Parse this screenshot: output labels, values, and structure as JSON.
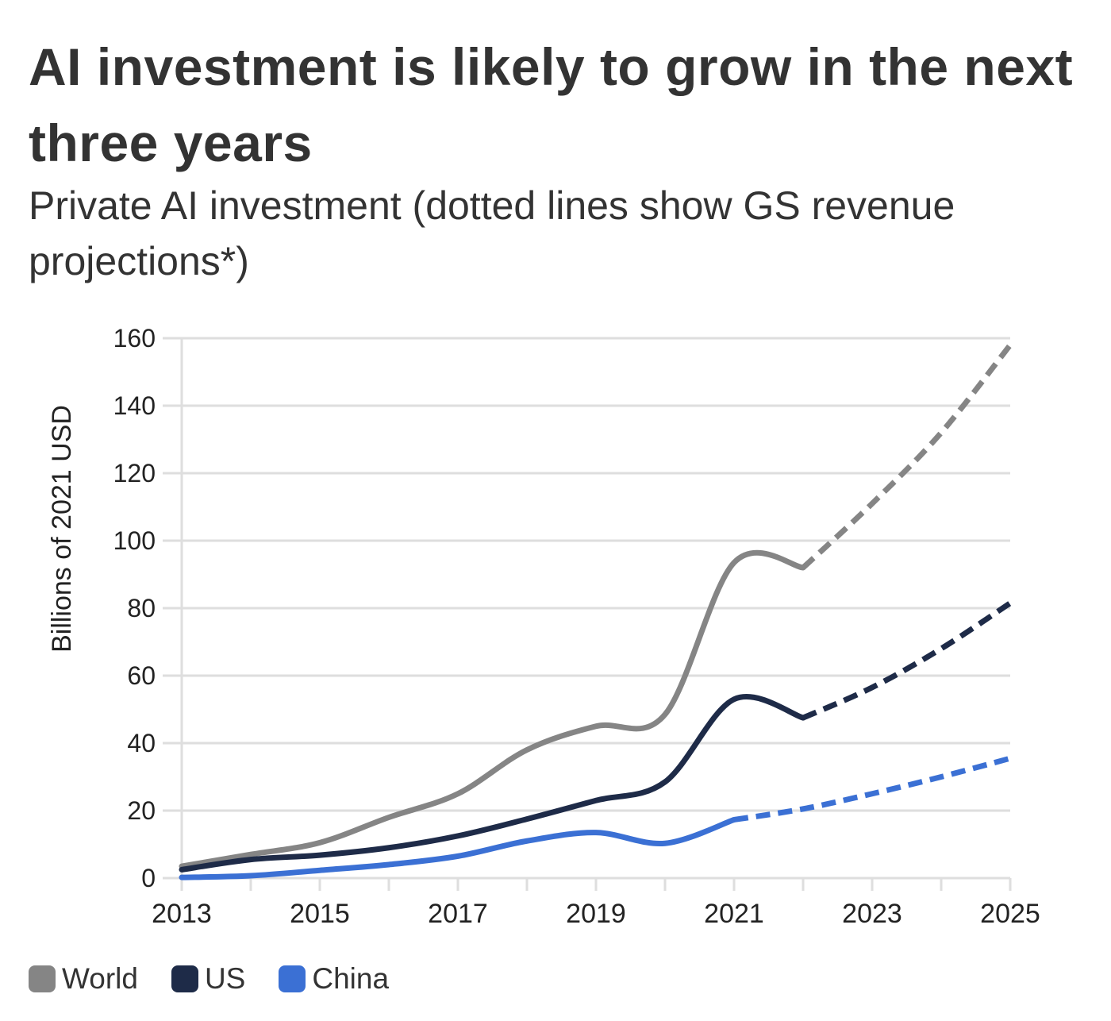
{
  "title": "AI investment is likely to grow in the next three years",
  "subtitle": "Private AI investment (dotted lines show GS revenue projections*)",
  "chart_data": {
    "type": "line",
    "title": "AI investment is likely to grow in the next three years",
    "subtitle": "Private AI investment (dotted lines show GS revenue projections*)",
    "ylabel": "Billions of 2021 USD",
    "xlabel": "",
    "x": [
      2013,
      2014,
      2015,
      2016,
      2017,
      2018,
      2019,
      2020,
      2021,
      2022,
      2023,
      2024,
      2025
    ],
    "xlim": [
      2013,
      2025
    ],
    "ylim": [
      0,
      160
    ],
    "xticks": [
      "2013",
      "2015",
      "2017",
      "2019",
      "2021",
      "2023",
      "2025"
    ],
    "yticks": [
      "0",
      "20",
      "40",
      "60",
      "80",
      "100",
      "120",
      "140",
      "160"
    ],
    "grid": true,
    "legend_position": "bottom-left",
    "series": [
      {
        "name": "World",
        "color": "#858585",
        "projection_from": 2022,
        "values": [
          3.5,
          7,
          10.5,
          18,
          25,
          38,
          45,
          48.5,
          93.5,
          92,
          111,
          132,
          158
        ]
      },
      {
        "name": "US",
        "color": "#1e2b48",
        "projection_from": 2022,
        "values": [
          2.5,
          5.5,
          6.8,
          9,
          12.5,
          17.5,
          23,
          28.5,
          53,
          47.5,
          56.5,
          68,
          81.5
        ]
      },
      {
        "name": "China",
        "color": "#3b70d4",
        "projection_from": 2021,
        "values": [
          0.2,
          0.7,
          2.3,
          4,
          6.5,
          11,
          13.5,
          10.3,
          17.3,
          20.5,
          25,
          30,
          35.5
        ]
      }
    ]
  }
}
